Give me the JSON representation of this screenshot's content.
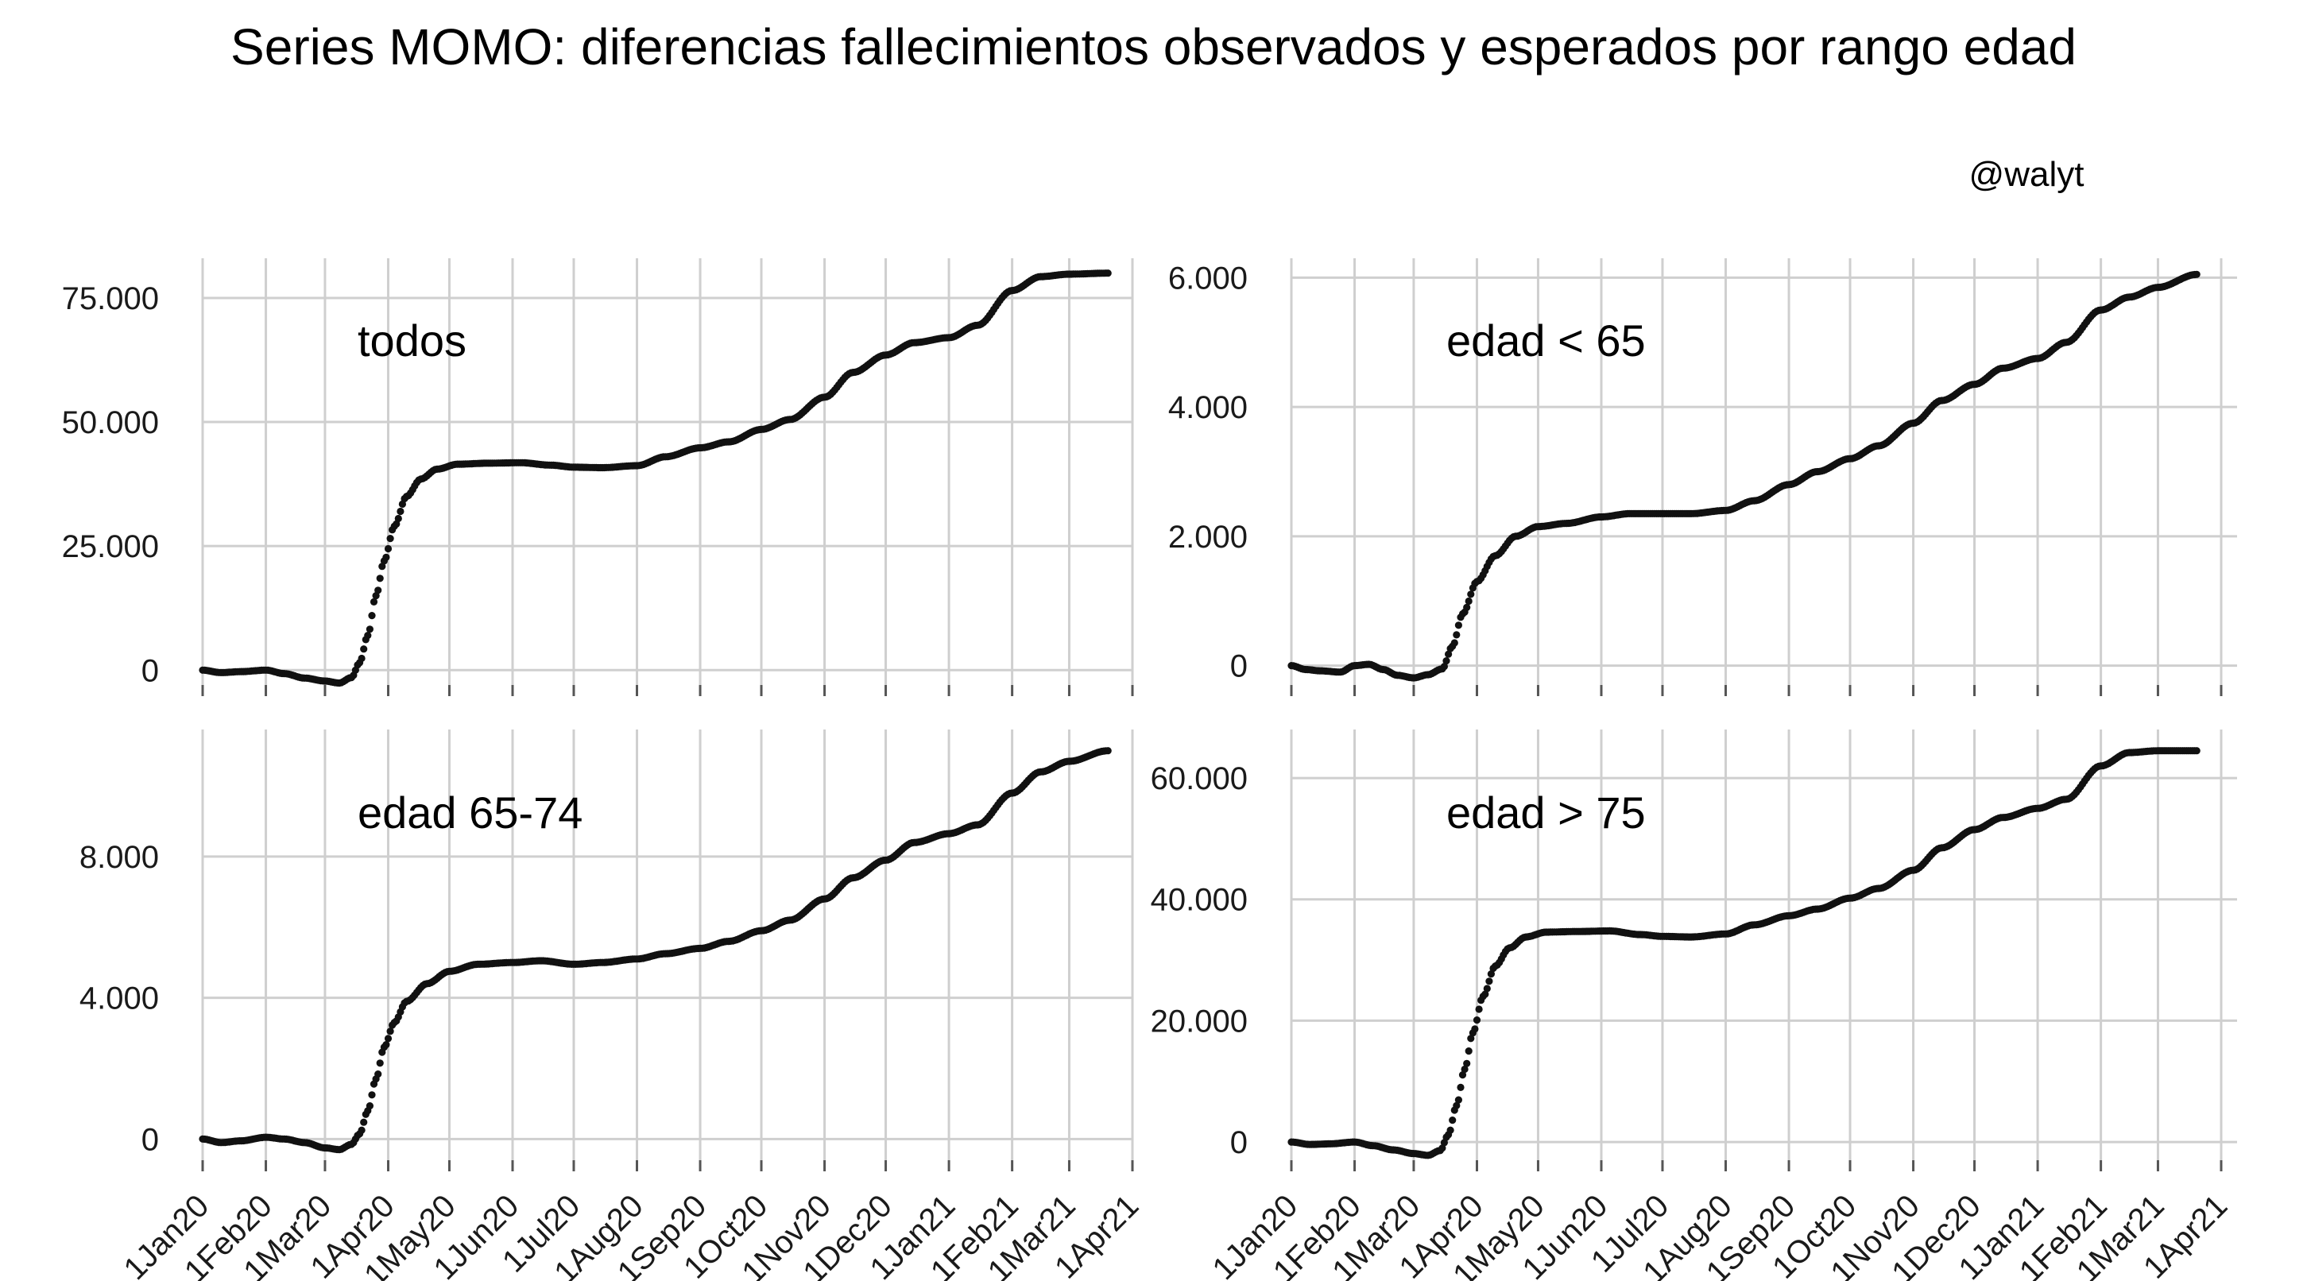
{
  "title": "Series MOMO: diferencias fallecimientos observados y esperados por rango edad",
  "credit": "@walyt",
  "chart_data": {
    "type": "scatter",
    "grid": true,
    "x_ticks": [
      "1Jan20",
      "1Feb20",
      "1Mar20",
      "1Apr20",
      "1May20",
      "1Jun20",
      "1Jul20",
      "1Aug20",
      "1Sep20",
      "1Oct20",
      "1Nov20",
      "1Dec20",
      "1Jan21",
      "1Feb21",
      "1Mar21",
      "1Apr21"
    ],
    "x_tick_dates": [
      "2020-01-01",
      "2020-02-01",
      "2020-03-01",
      "2020-04-01",
      "2020-05-01",
      "2020-06-01",
      "2020-07-01",
      "2020-08-01",
      "2020-09-01",
      "2020-10-01",
      "2020-11-01",
      "2020-12-01",
      "2021-01-01",
      "2021-02-01",
      "2021-03-01",
      "2021-04-01"
    ],
    "panels": [
      {
        "label": "todos",
        "ylim": [
          -3000,
          83000
        ],
        "y_ticks": [
          0,
          25000,
          50000,
          75000
        ],
        "y_tick_labels": [
          "0",
          "25.000",
          "50.000",
          "75.000"
        ],
        "points": [
          [
            "2020-01-01",
            0
          ],
          [
            "2020-01-10",
            -500
          ],
          [
            "2020-01-20",
            -300
          ],
          [
            "2020-02-01",
            0
          ],
          [
            "2020-02-10",
            -700
          ],
          [
            "2020-02-20",
            -1600
          ],
          [
            "2020-03-01",
            -2200
          ],
          [
            "2020-03-08",
            -2600
          ],
          [
            "2020-03-14",
            -1500
          ],
          [
            "2020-03-18",
            1500
          ],
          [
            "2020-03-22",
            7000
          ],
          [
            "2020-03-26",
            15000
          ],
          [
            "2020-03-30",
            22000
          ],
          [
            "2020-04-04",
            29000
          ],
          [
            "2020-04-10",
            35000
          ],
          [
            "2020-04-17",
            38500
          ],
          [
            "2020-04-25",
            40500
          ],
          [
            "2020-05-05",
            41500
          ],
          [
            "2020-05-20",
            41700
          ],
          [
            "2020-06-05",
            41800
          ],
          [
            "2020-06-20",
            41300
          ],
          [
            "2020-07-01",
            40900
          ],
          [
            "2020-07-15",
            40800
          ],
          [
            "2020-08-01",
            41200
          ],
          [
            "2020-08-15",
            43000
          ],
          [
            "2020-09-01",
            44800
          ],
          [
            "2020-09-15",
            46000
          ],
          [
            "2020-10-01",
            48500
          ],
          [
            "2020-10-15",
            50500
          ],
          [
            "2020-11-01",
            55000
          ],
          [
            "2020-11-15",
            60000
          ],
          [
            "2020-12-01",
            63500
          ],
          [
            "2020-12-15",
            66000
          ],
          [
            "2021-01-01",
            67000
          ],
          [
            "2021-01-15",
            69500
          ],
          [
            "2021-02-01",
            76500
          ],
          [
            "2021-02-15",
            79300
          ],
          [
            "2021-03-01",
            79800
          ],
          [
            "2021-03-20",
            80000
          ]
        ]
      },
      {
        "label": "edad < 65",
        "ylim": [
          -300,
          6300
        ],
        "y_ticks": [
          0,
          2000,
          4000,
          6000
        ],
        "y_tick_labels": [
          "0",
          "2.000",
          "4.000",
          "6.000"
        ],
        "points": [
          [
            "2020-01-01",
            0
          ],
          [
            "2020-01-08",
            -60
          ],
          [
            "2020-01-15",
            -80
          ],
          [
            "2020-01-25",
            -100
          ],
          [
            "2020-02-01",
            0
          ],
          [
            "2020-02-08",
            20
          ],
          [
            "2020-02-15",
            -60
          ],
          [
            "2020-02-22",
            -150
          ],
          [
            "2020-03-01",
            -190
          ],
          [
            "2020-03-08",
            -140
          ],
          [
            "2020-03-15",
            -50
          ],
          [
            "2020-03-20",
            300
          ],
          [
            "2020-03-25",
            800
          ],
          [
            "2020-04-01",
            1300
          ],
          [
            "2020-04-10",
            1700
          ],
          [
            "2020-04-20",
            2000
          ],
          [
            "2020-05-01",
            2150
          ],
          [
            "2020-05-15",
            2200
          ],
          [
            "2020-06-01",
            2300
          ],
          [
            "2020-06-15",
            2350
          ],
          [
            "2020-07-01",
            2350
          ],
          [
            "2020-07-15",
            2350
          ],
          [
            "2020-08-01",
            2400
          ],
          [
            "2020-08-15",
            2550
          ],
          [
            "2020-09-01",
            2800
          ],
          [
            "2020-09-15",
            3000
          ],
          [
            "2020-10-01",
            3200
          ],
          [
            "2020-10-15",
            3400
          ],
          [
            "2020-11-01",
            3750
          ],
          [
            "2020-11-15",
            4100
          ],
          [
            "2020-12-01",
            4350
          ],
          [
            "2020-12-15",
            4600
          ],
          [
            "2021-01-01",
            4750
          ],
          [
            "2021-01-15",
            5000
          ],
          [
            "2021-02-01",
            5500
          ],
          [
            "2021-02-15",
            5700
          ],
          [
            "2021-03-01",
            5850
          ],
          [
            "2021-03-20",
            6050
          ]
        ]
      },
      {
        "label": "edad 65-74",
        "ylim": [
          -600,
          11600
        ],
        "y_ticks": [
          0,
          4000,
          8000
        ],
        "y_tick_labels": [
          "0",
          "4.000",
          "8.000"
        ],
        "points": [
          [
            "2020-01-01",
            0
          ],
          [
            "2020-01-10",
            -100
          ],
          [
            "2020-01-20",
            -50
          ],
          [
            "2020-02-01",
            50
          ],
          [
            "2020-02-10",
            0
          ],
          [
            "2020-02-20",
            -100
          ],
          [
            "2020-03-01",
            -250
          ],
          [
            "2020-03-08",
            -300
          ],
          [
            "2020-03-14",
            -150
          ],
          [
            "2020-03-18",
            150
          ],
          [
            "2020-03-22",
            800
          ],
          [
            "2020-03-26",
            1700
          ],
          [
            "2020-03-30",
            2600
          ],
          [
            "2020-04-04",
            3300
          ],
          [
            "2020-04-10",
            3900
          ],
          [
            "2020-04-20",
            4400
          ],
          [
            "2020-05-01",
            4750
          ],
          [
            "2020-05-15",
            4950
          ],
          [
            "2020-06-01",
            5000
          ],
          [
            "2020-06-15",
            5050
          ],
          [
            "2020-07-01",
            4950
          ],
          [
            "2020-07-15",
            5000
          ],
          [
            "2020-08-01",
            5100
          ],
          [
            "2020-08-15",
            5250
          ],
          [
            "2020-09-01",
            5400
          ],
          [
            "2020-09-15",
            5600
          ],
          [
            "2020-10-01",
            5900
          ],
          [
            "2020-10-15",
            6200
          ],
          [
            "2020-11-01",
            6800
          ],
          [
            "2020-11-15",
            7400
          ],
          [
            "2020-12-01",
            7900
          ],
          [
            "2020-12-15",
            8400
          ],
          [
            "2021-01-01",
            8650
          ],
          [
            "2021-01-15",
            8900
          ],
          [
            "2021-02-01",
            9800
          ],
          [
            "2021-02-15",
            10400
          ],
          [
            "2021-03-01",
            10700
          ],
          [
            "2021-03-20",
            11000
          ]
        ]
      },
      {
        "label": "edad > 75",
        "ylim": [
          -3000,
          68000
        ],
        "y_ticks": [
          0,
          20000,
          40000,
          60000
        ],
        "y_tick_labels": [
          "0",
          "20.000",
          "40.000",
          "60.000"
        ],
        "points": [
          [
            "2020-01-01",
            0
          ],
          [
            "2020-01-10",
            -400
          ],
          [
            "2020-01-20",
            -300
          ],
          [
            "2020-02-01",
            0
          ],
          [
            "2020-02-10",
            -600
          ],
          [
            "2020-02-20",
            -1300
          ],
          [
            "2020-03-01",
            -1900
          ],
          [
            "2020-03-08",
            -2200
          ],
          [
            "2020-03-14",
            -1400
          ],
          [
            "2020-03-18",
            1200
          ],
          [
            "2020-03-22",
            6000
          ],
          [
            "2020-03-26",
            12000
          ],
          [
            "2020-03-30",
            18000
          ],
          [
            "2020-04-04",
            24000
          ],
          [
            "2020-04-10",
            29000
          ],
          [
            "2020-04-17",
            32000
          ],
          [
            "2020-04-25",
            33800
          ],
          [
            "2020-05-05",
            34600
          ],
          [
            "2020-05-20",
            34700
          ],
          [
            "2020-06-05",
            34800
          ],
          [
            "2020-06-20",
            34200
          ],
          [
            "2020-07-01",
            33900
          ],
          [
            "2020-07-15",
            33800
          ],
          [
            "2020-08-01",
            34300
          ],
          [
            "2020-08-15",
            35800
          ],
          [
            "2020-09-01",
            37300
          ],
          [
            "2020-09-15",
            38400
          ],
          [
            "2020-10-01",
            40200
          ],
          [
            "2020-10-15",
            41800
          ],
          [
            "2020-11-01",
            44800
          ],
          [
            "2020-11-15",
            48500
          ],
          [
            "2020-12-01",
            51500
          ],
          [
            "2020-12-15",
            53500
          ],
          [
            "2021-01-01",
            55000
          ],
          [
            "2021-01-15",
            56500
          ],
          [
            "2021-02-01",
            62000
          ],
          [
            "2021-02-15",
            64200
          ],
          [
            "2021-03-01",
            64500
          ],
          [
            "2021-03-20",
            64500
          ]
        ]
      }
    ]
  }
}
